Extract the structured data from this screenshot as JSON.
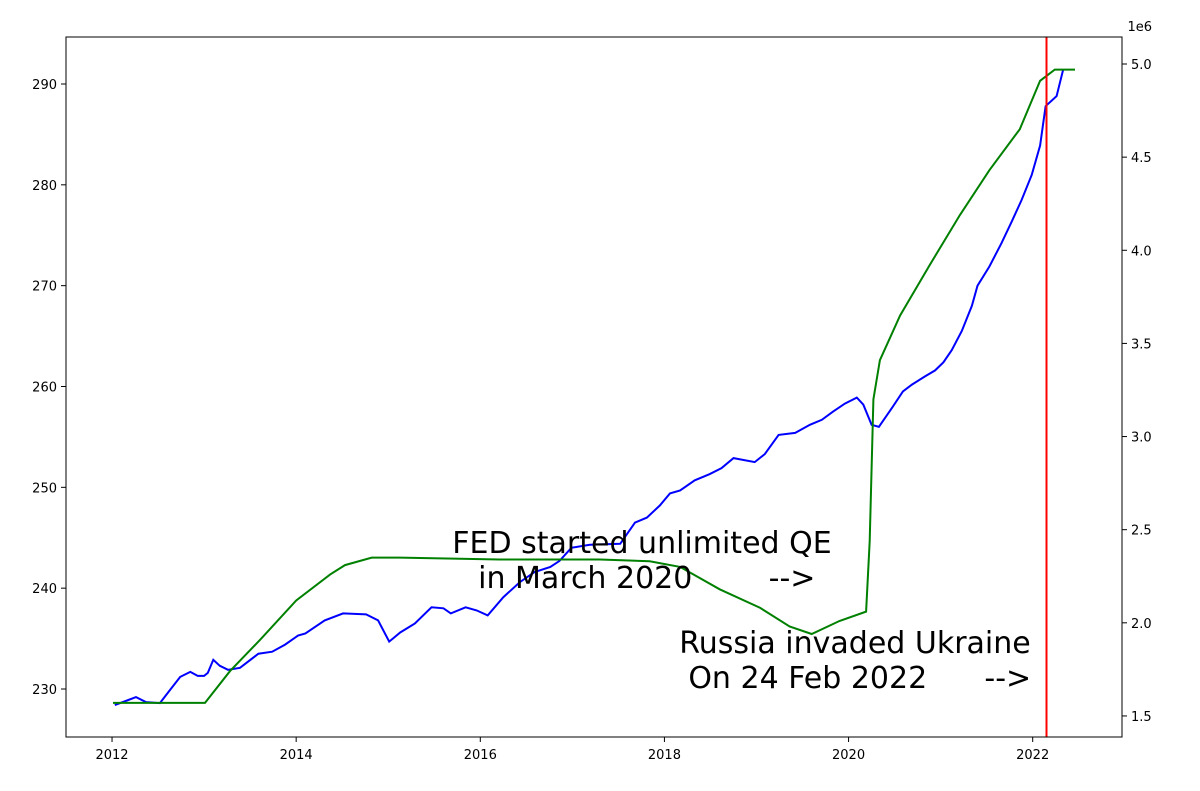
{
  "chart_data": {
    "type": "line",
    "xlim": [
      2011.5,
      2022.97
    ],
    "xticks": [
      2012,
      2014,
      2016,
      2018,
      2020,
      2022
    ],
    "ylim": [
      225.24,
      294.66
    ],
    "yticks": [
      230,
      240,
      250,
      260,
      270,
      280,
      290
    ],
    "y2lim": [
      1387000,
      5145000
    ],
    "y2_offset_label": "1e6",
    "y2ticks": [
      {
        "value": 1500000,
        "label": "1.5"
      },
      {
        "value": 2000000,
        "label": "2.0"
      },
      {
        "value": 2500000,
        "label": "2.5"
      },
      {
        "value": 3000000,
        "label": "3.0"
      },
      {
        "value": 3500000,
        "label": "3.5"
      },
      {
        "value": 4000000,
        "label": "4.0"
      },
      {
        "value": 4500000,
        "label": "4.5"
      },
      {
        "value": 5000000,
        "label": "5.0"
      }
    ],
    "series": [
      {
        "color": "#0000ff",
        "axis": "y",
        "x": [
          2012.03,
          2012.26,
          2012.37,
          2012.52,
          2012.63,
          2012.74,
          2012.85,
          2012.93,
          2013.0,
          2013.04,
          2013.1,
          2013.17,
          2013.26,
          2013.39,
          2013.59,
          2013.74,
          2013.88,
          2014.02,
          2014.1,
          2014.31,
          2014.51,
          2014.76,
          2014.89,
          2015.01,
          2015.13,
          2015.29,
          2015.47,
          2015.6,
          2015.68,
          2015.84,
          2015.96,
          2016.08,
          2016.25,
          2016.43,
          2016.59,
          2016.76,
          2016.86,
          2016.99,
          2017.19,
          2017.52,
          2017.68,
          2017.81,
          2017.95,
          2018.06,
          2018.17,
          2018.33,
          2018.49,
          2018.62,
          2018.75,
          2018.98,
          2019.09,
          2019.24,
          2019.42,
          2019.58,
          2019.71,
          2019.83,
          2019.96,
          2020.09,
          2020.16,
          2020.25,
          2020.33,
          2020.48,
          2020.59,
          2020.69,
          2020.83,
          2020.94,
          2021.03,
          2021.12,
          2021.23,
          2021.34,
          2021.4,
          2021.53,
          2021.66,
          2021.77,
          2021.88,
          2021.99,
          2022.08,
          2022.14,
          2022.26,
          2022.33
        ],
        "values": [
          228.4,
          229.2,
          228.7,
          228.6,
          229.9,
          231.2,
          231.7,
          231.3,
          231.3,
          231.6,
          232.9,
          232.3,
          231.9,
          232.1,
          233.5,
          233.7,
          234.4,
          235.3,
          235.5,
          236.8,
          237.5,
          237.4,
          236.8,
          234.7,
          235.6,
          236.5,
          238.1,
          238.0,
          237.5,
          238.1,
          237.8,
          237.3,
          239.1,
          240.6,
          241.6,
          242.1,
          242.7,
          244.0,
          244.3,
          244.4,
          246.5,
          247.0,
          248.2,
          249.4,
          249.7,
          250.7,
          251.3,
          251.9,
          252.9,
          252.5,
          253.3,
          255.2,
          255.4,
          256.2,
          256.7,
          257.5,
          258.3,
          258.9,
          258.2,
          256.2,
          256.0,
          258.0,
          259.5,
          260.2,
          261.0,
          261.6,
          262.4,
          263.6,
          265.5,
          268.0,
          270.0,
          271.9,
          274.2,
          276.3,
          278.5,
          281.0,
          283.9,
          287.8,
          288.8,
          291.4
        ]
      },
      {
        "color": "#008000",
        "axis": "y2",
        "x": [
          2012.01,
          2012.41,
          2012.96,
          2013.01,
          2013.28,
          2013.61,
          2014.0,
          2014.37,
          2014.53,
          2014.82,
          2015.13,
          2016.21,
          2017.3,
          2017.84,
          2018.17,
          2018.6,
          2019.04,
          2019.36,
          2019.6,
          2019.9,
          2020.19,
          2020.23,
          2020.27,
          2020.34,
          2020.56,
          2020.88,
          2021.21,
          2021.53,
          2021.86,
          2022.08,
          2022.24,
          2022.46
        ],
        "values": [
          1570000,
          1570000,
          1570000,
          1570000,
          1740000,
          1910000,
          2120000,
          2260000,
          2310000,
          2350000,
          2350000,
          2340000,
          2340000,
          2330000,
          2300000,
          2180000,
          2080000,
          1980000,
          1940000,
          2010000,
          2060000,
          2440000,
          3200000,
          3410000,
          3650000,
          3920000,
          4190000,
          4430000,
          4650000,
          4910000,
          4970000,
          4970000
        ]
      }
    ],
    "vlines": [
      {
        "x": 2022.15,
        "color": "#ff0000"
      }
    ],
    "annotations": [
      {
        "lines": [
          "FED started unlimited QE",
          " in March 2020        -->"
        ]
      },
      {
        "lines": [
          "Russia invaded Ukraine",
          " On 24 Feb 2022      -->"
        ]
      }
    ]
  }
}
